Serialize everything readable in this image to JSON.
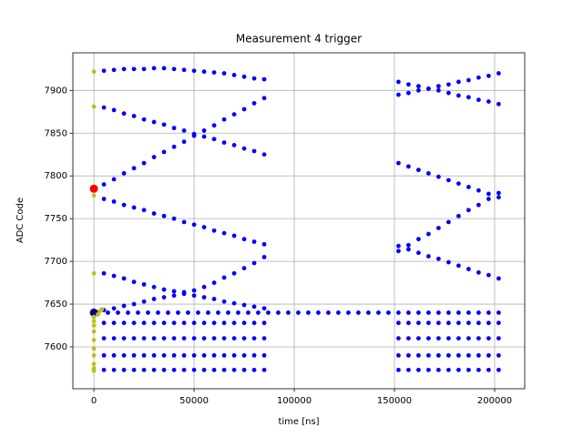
{
  "chart_data": {
    "type": "scatter",
    "title": "Measurement 4 trigger",
    "xlabel": "time [ns]",
    "ylabel": "ADC Code",
    "xlim": [
      -10500,
      215000
    ],
    "ylim": [
      7551,
      7944
    ],
    "xticks": [
      0,
      50000,
      100000,
      150000,
      200000
    ],
    "yticks": [
      7600,
      7650,
      7700,
      7750,
      7800,
      7850,
      7900
    ],
    "grid": true,
    "series": [
      {
        "color": "#0000ff",
        "x": [
          5000,
          10000,
          15000,
          20000,
          25000,
          30000,
          35000,
          40000,
          45000,
          50000,
          55000,
          60000,
          65000,
          70000,
          75000,
          80000,
          85000
        ],
        "values": [
          7923,
          7924,
          7925,
          7925,
          7925,
          7926,
          7926,
          7925,
          7924,
          7923,
          7922,
          7921,
          7920,
          7918,
          7916,
          7914,
          7913
        ]
      },
      {
        "color": "#0000ff",
        "x": [
          5000,
          10000,
          15000,
          20000,
          25000,
          30000,
          35000,
          40000,
          45000,
          50000,
          55000,
          60000,
          65000,
          70000,
          75000,
          80000,
          85000
        ],
        "values": [
          7880,
          7877,
          7873,
          7870,
          7866,
          7863,
          7860,
          7856,
          7853,
          7849,
          7846,
          7843,
          7839,
          7836,
          7832,
          7829,
          7825
        ]
      },
      {
        "color": "#0000ff",
        "x": [
          5000,
          10000,
          15000,
          20000,
          25000,
          30000,
          35000,
          40000,
          45000,
          50000,
          55000,
          60000,
          65000,
          70000,
          75000,
          80000,
          85000
        ],
        "values": [
          7790,
          7796,
          7803,
          7809,
          7815,
          7822,
          7828,
          7834,
          7840,
          7847,
          7853,
          7859,
          7866,
          7872,
          7878,
          7885,
          7891
        ]
      },
      {
        "color": "#0000ff",
        "x": [
          5000,
          10000,
          15000,
          20000,
          25000,
          30000,
          35000,
          40000,
          45000,
          50000,
          55000,
          60000,
          65000,
          70000,
          75000,
          80000,
          85000
        ],
        "values": [
          7773,
          7770,
          7766,
          7763,
          7760,
          7756,
          7753,
          7750,
          7746,
          7743,
          7740,
          7736,
          7733,
          7730,
          7726,
          7723,
          7720
        ]
      },
      {
        "color": "#0000ff",
        "x": [
          5000,
          10000,
          15000,
          20000,
          25000,
          30000,
          35000,
          40000,
          45000,
          50000,
          55000,
          60000,
          65000,
          70000,
          75000,
          80000,
          85000
        ],
        "values": [
          7686,
          7683,
          7680,
          7676,
          7673,
          7670,
          7667,
          7665,
          7664,
          7666,
          7670,
          7675,
          7681,
          7686,
          7692,
          7698,
          7705
        ]
      },
      {
        "color": "#0000ff",
        "x": [
          5000,
          10000,
          15000,
          20000,
          25000,
          30000,
          35000,
          40000,
          45000,
          50000,
          55000,
          60000,
          65000,
          70000,
          75000,
          80000,
          85000
        ],
        "values": [
          7643,
          7645,
          7648,
          7650,
          7653,
          7656,
          7658,
          7660,
          7662,
          7660,
          7658,
          7656,
          7653,
          7651,
          7649,
          7647,
          7645
        ]
      },
      {
        "color": "#0000ff",
        "x": [
          152000,
          157000,
          162000,
          167000,
          172000,
          177000,
          182000,
          187000,
          192000,
          197000,
          202000
        ],
        "values": [
          7895,
          7897,
          7900,
          7902,
          7905,
          7907,
          7910,
          7912,
          7915,
          7917,
          7920
        ]
      },
      {
        "color": "#0000ff",
        "x": [
          152000,
          157000,
          162000,
          167000,
          172000,
          177000,
          182000,
          187000,
          192000,
          197000,
          202000
        ],
        "values": [
          7910,
          7907,
          7905,
          7902,
          7900,
          7897,
          7894,
          7892,
          7889,
          7887,
          7884
        ]
      },
      {
        "color": "#0000ff",
        "x": [
          152000,
          157000,
          162000,
          167000,
          172000,
          177000,
          182000,
          187000,
          192000,
          197000,
          202000
        ],
        "values": [
          7815,
          7811,
          7807,
          7803,
          7799,
          7795,
          7791,
          7787,
          7783,
          7779,
          7775
        ]
      },
      {
        "color": "#0000ff",
        "x": [
          152000,
          157000,
          162000,
          167000,
          172000,
          177000,
          182000,
          187000,
          192000,
          197000,
          202000
        ],
        "values": [
          7712,
          7719,
          7726,
          7732,
          7739,
          7746,
          7753,
          7760,
          7766,
          7773,
          7780
        ]
      },
      {
        "color": "#0000ff",
        "x": [
          152000,
          157000,
          162000,
          167000,
          172000,
          177000,
          182000,
          187000,
          192000,
          197000,
          202000
        ],
        "values": [
          7718,
          7714,
          7710,
          7706,
          7703,
          7699,
          7695,
          7691,
          7687,
          7684,
          7680
        ]
      },
      {
        "color": "#0000ff",
        "x": [
          2000,
          7000,
          12000,
          17000,
          22000,
          27000,
          32000,
          37000,
          42000,
          47000,
          52000,
          57000,
          62000,
          67000,
          72000,
          77000,
          82000,
          87000,
          92000,
          97000,
          102000,
          107000,
          112000,
          117000,
          122000,
          127000,
          132000,
          137000,
          142000,
          147000,
          152000,
          157000,
          162000,
          167000,
          172000,
          177000,
          182000,
          187000,
          192000,
          197000,
          202000
        ],
        "values": [
          7640,
          7640,
          7640,
          7640,
          7640,
          7640,
          7640,
          7640,
          7640,
          7640,
          7640,
          7640,
          7640,
          7640,
          7640,
          7640,
          7640,
          7640,
          7640,
          7640,
          7640,
          7640,
          7640,
          7640,
          7640,
          7640,
          7640,
          7640,
          7640,
          7640,
          7640,
          7640,
          7640,
          7640,
          7640,
          7640,
          7640,
          7640,
          7640,
          7640,
          7640
        ]
      },
      {
        "color": "#0000ff",
        "x": [
          5000,
          10000,
          15000,
          20000,
          25000,
          30000,
          35000,
          40000,
          45000,
          50000,
          55000,
          60000,
          65000,
          70000,
          75000,
          80000,
          85000,
          152000,
          157000,
          162000,
          167000,
          172000,
          177000,
          182000,
          187000,
          192000,
          197000,
          202000
        ],
        "values": [
          7628,
          7628,
          7628,
          7628,
          7628,
          7628,
          7628,
          7628,
          7628,
          7628,
          7628,
          7628,
          7628,
          7628,
          7628,
          7628,
          7628,
          7628,
          7628,
          7628,
          7628,
          7628,
          7628,
          7628,
          7628,
          7628,
          7628,
          7628
        ]
      },
      {
        "color": "#0000ff",
        "x": [
          5000,
          10000,
          15000,
          20000,
          25000,
          30000,
          35000,
          40000,
          45000,
          50000,
          55000,
          60000,
          65000,
          70000,
          75000,
          80000,
          85000,
          152000,
          157000,
          162000,
          167000,
          172000,
          177000,
          182000,
          187000,
          192000,
          197000,
          202000
        ],
        "values": [
          7610,
          7610,
          7610,
          7610,
          7610,
          7610,
          7610,
          7610,
          7610,
          7610,
          7610,
          7610,
          7610,
          7610,
          7610,
          7610,
          7610,
          7610,
          7610,
          7610,
          7610,
          7610,
          7610,
          7610,
          7610,
          7610,
          7610,
          7610
        ]
      },
      {
        "color": "#0000ff",
        "x": [
          5000,
          10000,
          15000,
          20000,
          25000,
          30000,
          35000,
          40000,
          45000,
          50000,
          55000,
          60000,
          65000,
          70000,
          75000,
          80000,
          85000,
          152000,
          157000,
          162000,
          167000,
          172000,
          177000,
          182000,
          187000,
          192000,
          197000,
          202000
        ],
        "values": [
          7590,
          7590,
          7590,
          7590,
          7590,
          7590,
          7590,
          7590,
          7590,
          7590,
          7590,
          7590,
          7590,
          7590,
          7590,
          7590,
          7590,
          7590,
          7590,
          7590,
          7590,
          7590,
          7590,
          7590,
          7590,
          7590,
          7590,
          7590
        ]
      },
      {
        "color": "#0000ff",
        "x": [
          5000,
          10000,
          15000,
          20000,
          25000,
          30000,
          35000,
          40000,
          45000,
          50000,
          55000,
          60000,
          65000,
          70000,
          75000,
          80000,
          85000,
          152000,
          157000,
          162000,
          167000,
          172000,
          177000,
          182000,
          187000,
          192000,
          197000,
          202000
        ],
        "values": [
          7573,
          7573,
          7573,
          7573,
          7573,
          7573,
          7573,
          7573,
          7573,
          7573,
          7573,
          7573,
          7573,
          7573,
          7573,
          7573,
          7573,
          7573,
          7573,
          7573,
          7573,
          7573,
          7573,
          7573,
          7573,
          7573,
          7573,
          7573
        ]
      },
      {
        "color": "#000080",
        "x": [
          0
        ],
        "values": [
          7640
        ]
      },
      {
        "color": "#bfbf1f",
        "x": [
          0,
          0,
          0,
          0,
          0,
          0,
          0,
          0,
          0,
          0,
          0,
          0,
          0,
          0,
          2000,
          3000,
          4000
        ],
        "values": [
          7922,
          7881,
          7777,
          7686,
          7635,
          7630,
          7625,
          7618,
          7608,
          7598,
          7590,
          7580,
          7575,
          7572,
          7638,
          7642,
          7644
        ]
      },
      {
        "color": "#ff0000",
        "x": [
          0
        ],
        "values": [
          7785
        ]
      }
    ]
  }
}
